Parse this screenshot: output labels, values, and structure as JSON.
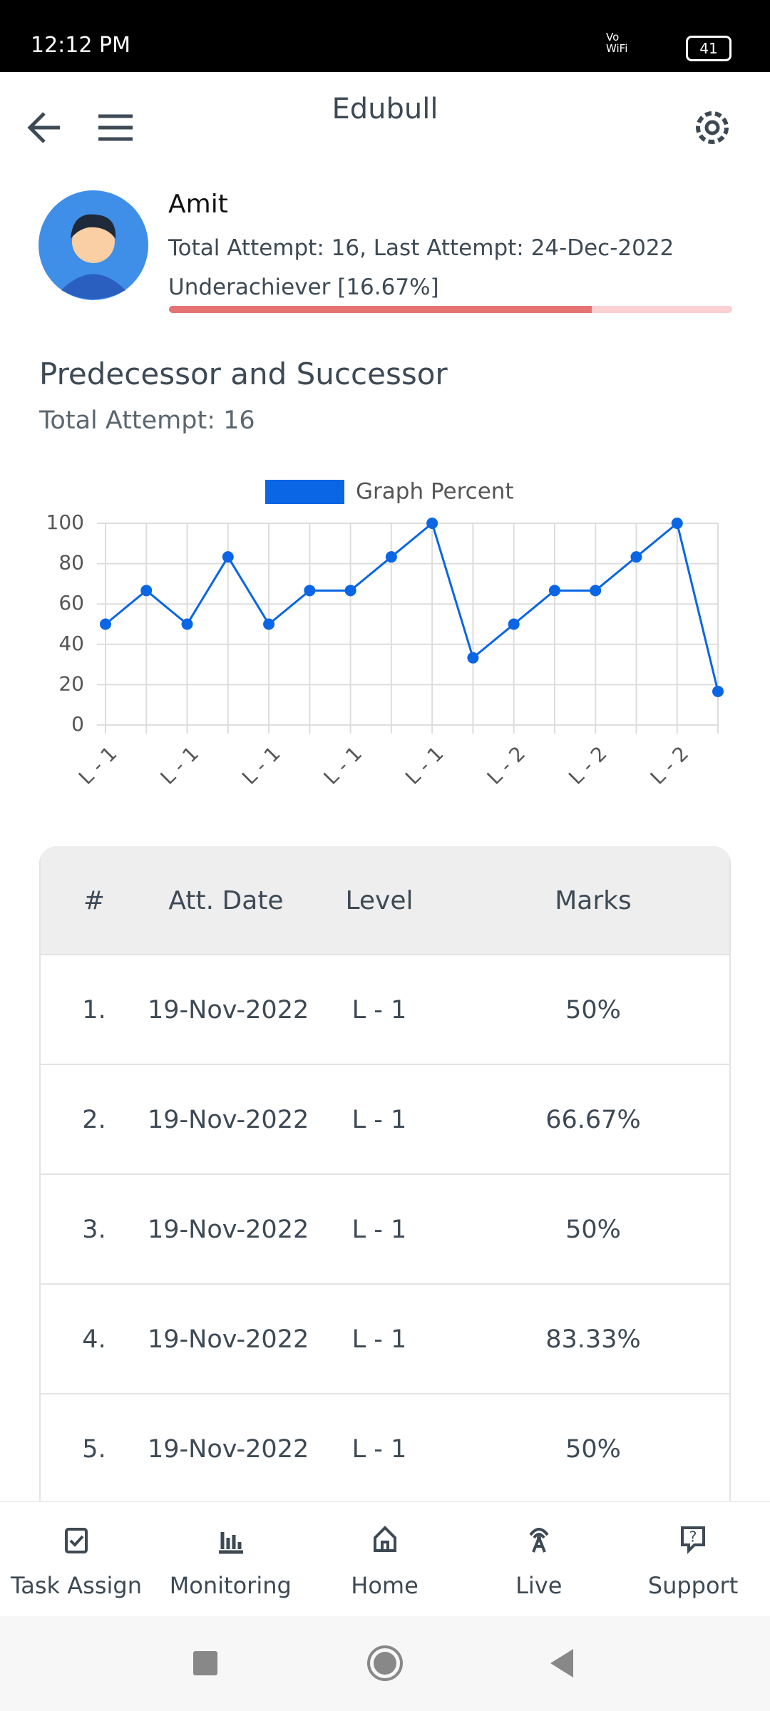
{
  "status_bar": {
    "time": "12:12 PM",
    "network": "Vo WiFi",
    "battery": "41"
  },
  "header": {
    "title": "Edubull"
  },
  "profile": {
    "name": "Amit",
    "attempts": "Total Attempt: 16, Last Attempt: 24-Dec-2022",
    "status": "Underachiever [16.67%]"
  },
  "section": {
    "title": "Predecessor and Successor",
    "subtitle": "Total Attempt: 16"
  },
  "chart_data": {
    "type": "line",
    "categories": [
      "L - 1",
      null,
      "L - 1",
      null,
      "L - 1",
      null,
      "L - 1",
      null,
      "L - 1",
      null,
      "L - 2",
      null,
      "L - 2",
      null,
      "L - 2",
      null
    ],
    "series": [
      {
        "name": "Graph Percent",
        "color": "#0a66e4",
        "values": [
          50,
          66.67,
          50,
          83.33,
          50,
          66.67,
          66.67,
          83.33,
          100,
          33.33,
          50,
          66.67,
          66.67,
          83.33,
          100,
          16.67
        ]
      }
    ],
    "ylim": [
      0,
      100
    ],
    "yticks": [
      0,
      20,
      40,
      60,
      80,
      100
    ],
    "grid": true,
    "legend": "top"
  },
  "table": {
    "header": [
      "#",
      "Att. Date",
      "Level",
      "Marks"
    ],
    "rows": [
      [
        "1.",
        "19-Nov-2022",
        "L - 1",
        "50%"
      ],
      [
        "2.",
        "19-Nov-2022",
        "L - 1",
        "66.67%"
      ],
      [
        "3.",
        "19-Nov-2022",
        "L - 1",
        "50%"
      ],
      [
        "4.",
        "19-Nov-2022",
        "L - 1",
        "83.33%"
      ],
      [
        "5.",
        "19-Nov-2022",
        "L - 1",
        "50%"
      ]
    ]
  },
  "bottom_nav": [
    "Task Assign",
    "Monitoring",
    "Home",
    "Live",
    "Support"
  ]
}
